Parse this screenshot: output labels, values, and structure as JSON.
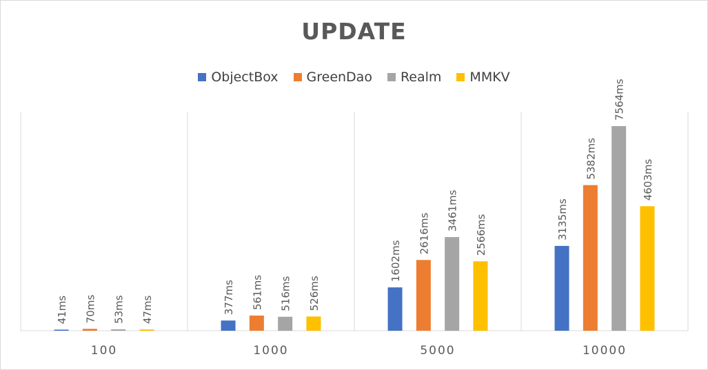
{
  "chart_data": {
    "type": "bar",
    "title": "UPDATE",
    "categories": [
      "100",
      "1000",
      "5000",
      "10000"
    ],
    "series": [
      {
        "name": "ObjectBox",
        "color": "#4472c4",
        "values": [
          41,
          377,
          1602,
          3135
        ],
        "labels": [
          "41ms",
          "377ms",
          "1602ms",
          "3135ms"
        ]
      },
      {
        "name": "GreenDao",
        "color": "#ed7d31",
        "values": [
          70,
          561,
          2616,
          5382
        ],
        "labels": [
          "70ms",
          "561ms",
          "2616ms",
          "5382ms"
        ]
      },
      {
        "name": "Realm",
        "color": "#a5a5a5",
        "values": [
          53,
          516,
          3461,
          7564
        ],
        "labels": [
          "53ms",
          "516ms",
          "3461ms",
          "7564ms"
        ]
      },
      {
        "name": "MMKV",
        "color": "#ffc000",
        "values": [
          47,
          526,
          2566,
          4603
        ],
        "labels": [
          "47ms",
          "526ms",
          "2566ms",
          "4603ms"
        ]
      }
    ],
    "ylim": [
      0,
      7564
    ],
    "grid": false,
    "category_separators": true,
    "legend_position": "top"
  }
}
